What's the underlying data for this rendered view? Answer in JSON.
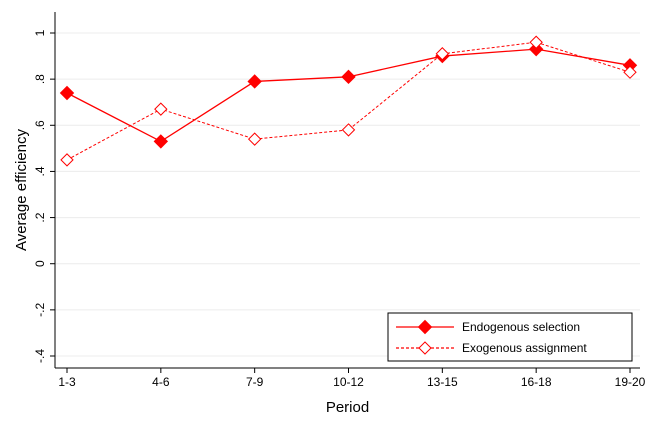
{
  "chart_data": {
    "type": "line",
    "title": "",
    "xlabel": "Period",
    "ylabel": "Average efficiency",
    "categories": [
      "1-3",
      "4-6",
      "7-9",
      "10-12",
      "13-15",
      "16-18",
      "19-20"
    ],
    "ylim": [
      -0.4,
      1.0
    ],
    "yticks": [
      -0.4,
      -0.2,
      0,
      0.2,
      0.4,
      0.6,
      0.8,
      1.0
    ],
    "ytick_labels": [
      "-.4",
      "-.2",
      "0",
      ".2",
      ".4",
      ".6",
      ".8",
      "1"
    ],
    "grid": true,
    "legend_position": "bottom-right",
    "series": [
      {
        "name": "Endogenous selection",
        "values": [
          0.74,
          0.53,
          0.79,
          0.81,
          0.9,
          0.93,
          0.86
        ],
        "line_style": "solid",
        "marker": "filled-diamond",
        "color": "#ff0000"
      },
      {
        "name": "Exogenous assignment",
        "values": [
          0.45,
          0.67,
          0.54,
          0.58,
          0.91,
          0.96,
          0.83
        ],
        "line_style": "dashed",
        "marker": "hollow-diamond",
        "color": "#ff0000"
      }
    ]
  }
}
